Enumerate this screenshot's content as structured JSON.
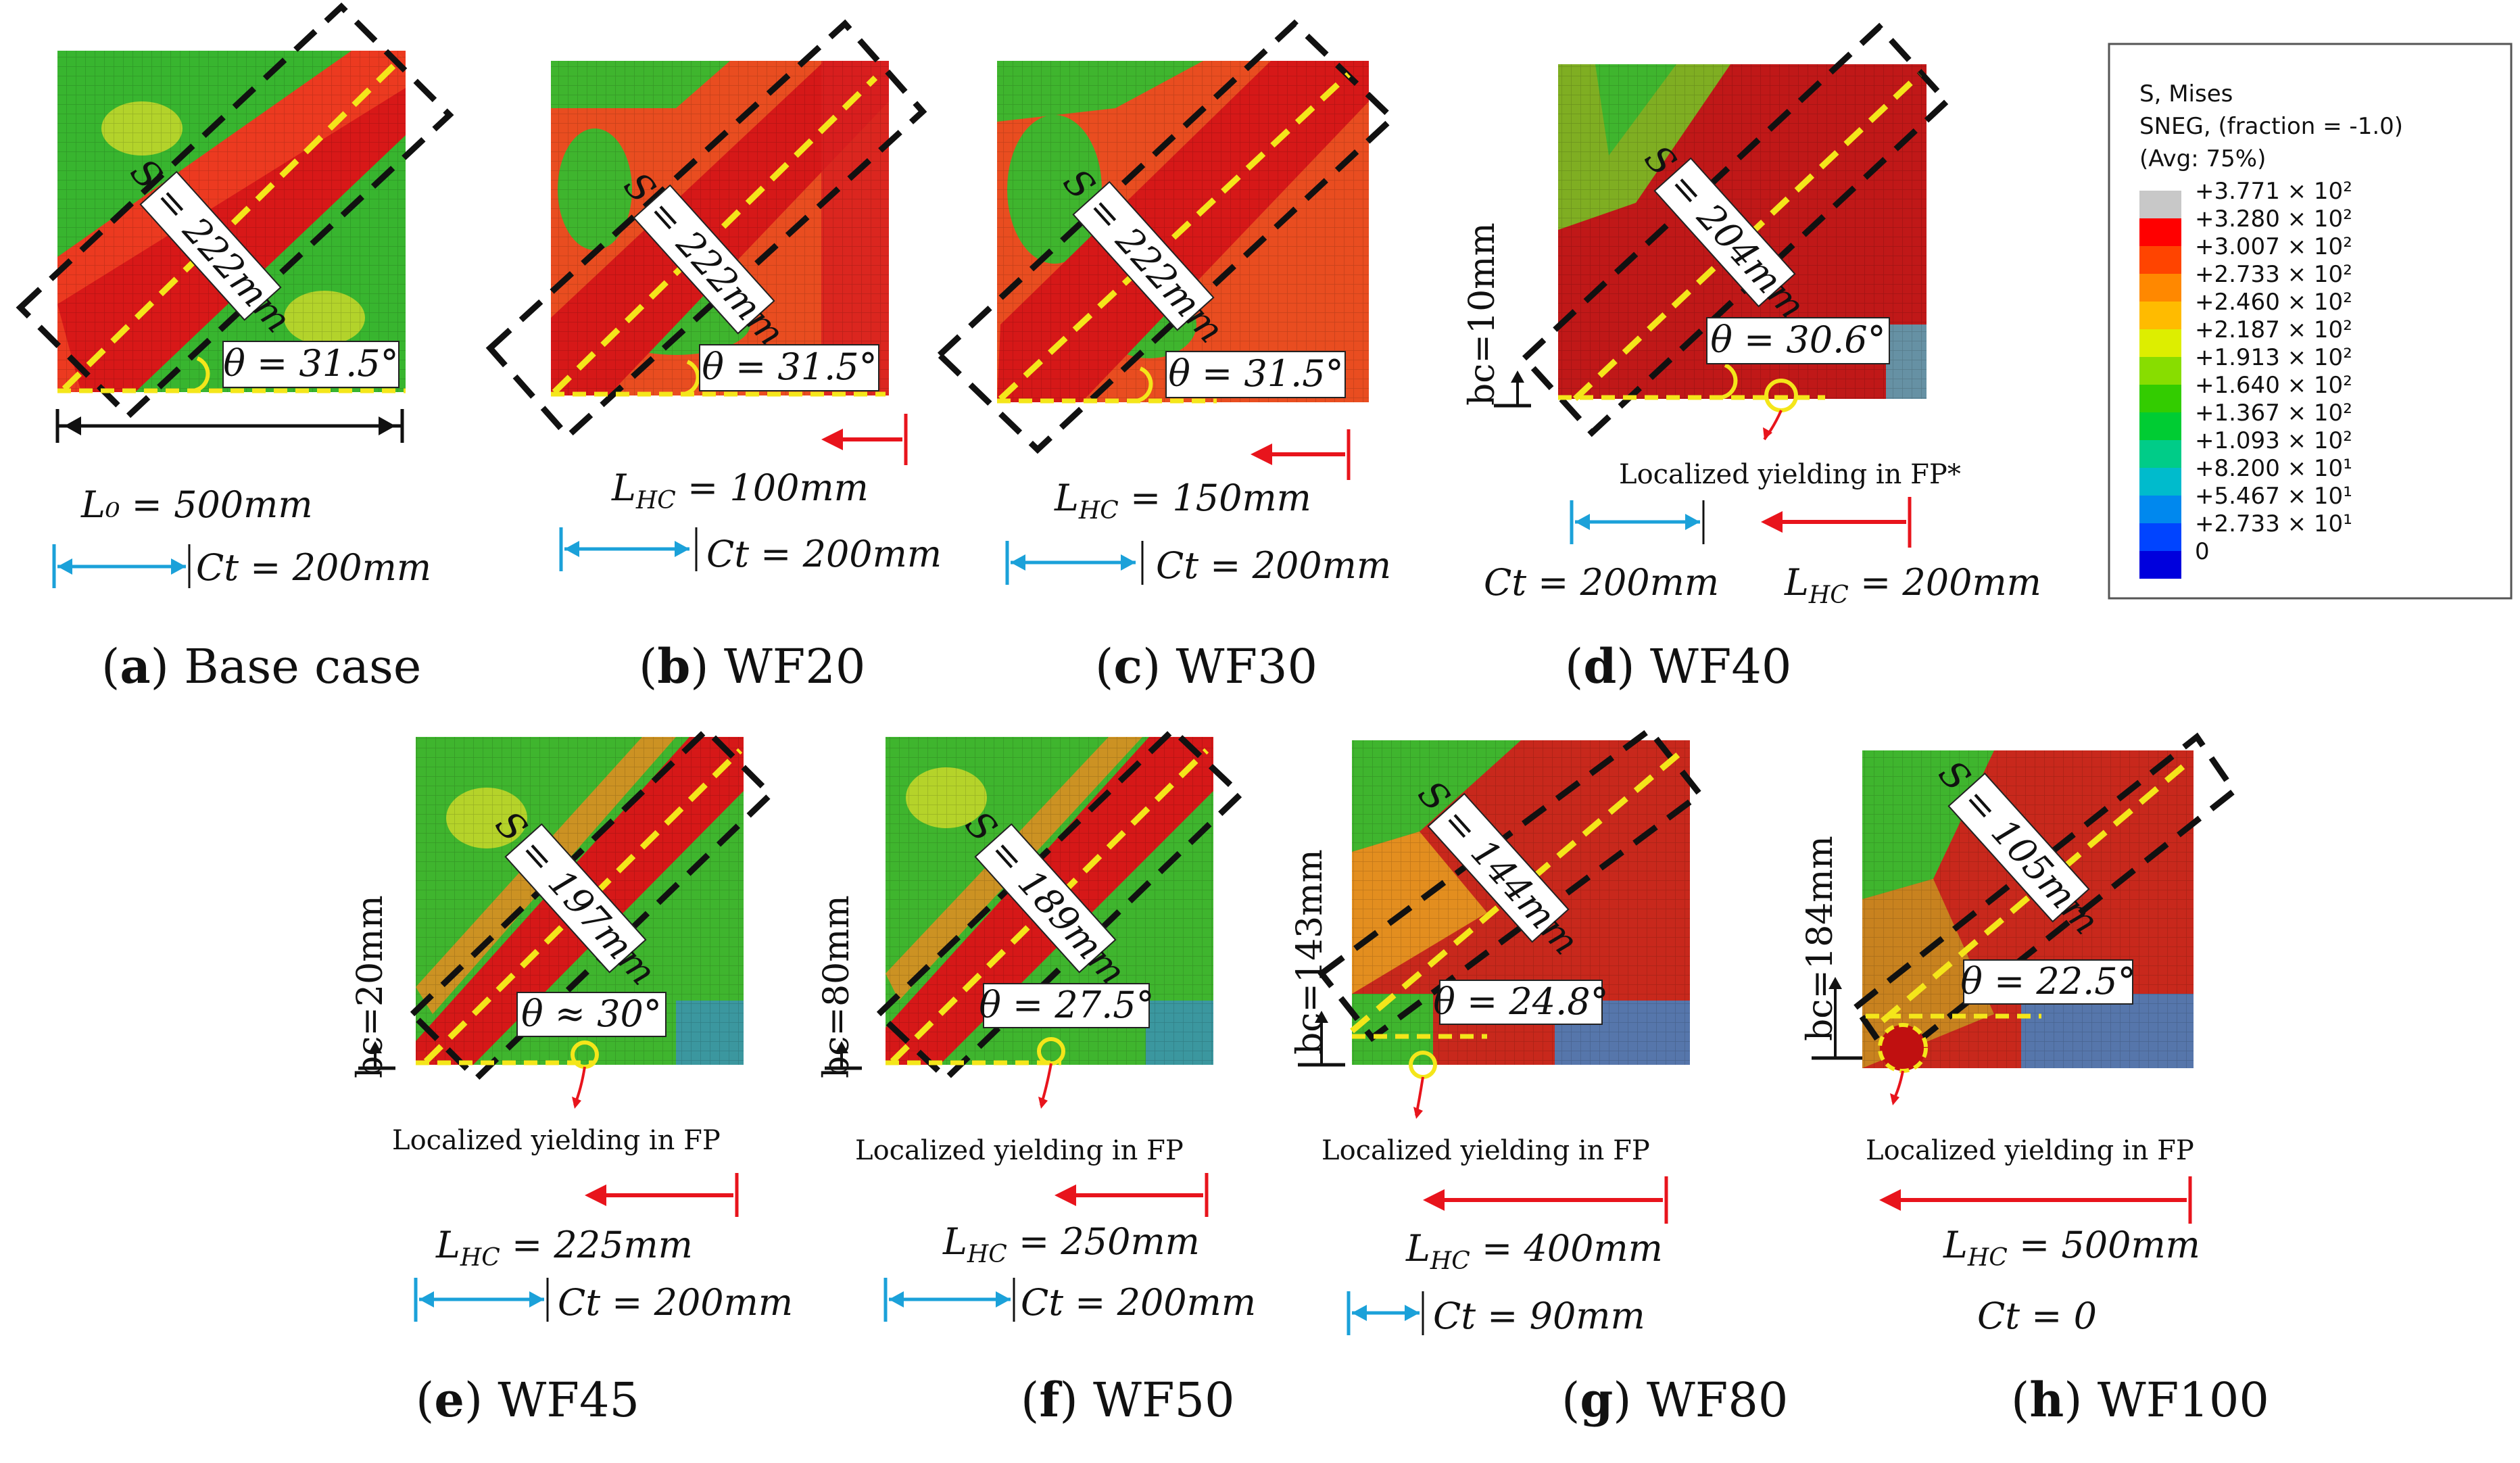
{
  "legend": {
    "title_lines": [
      "S, Mises",
      "SNEG, (fraction = -1.0)",
      "(Avg: 75%)"
    ],
    "entries": [
      {
        "label": "+3.771 × 10²",
        "color": "#c8c8c8"
      },
      {
        "label": "+3.280 × 10²",
        "color": "#ff0000"
      },
      {
        "label": "+3.007 × 10²",
        "color": "#ff4400"
      },
      {
        "label": "+2.733 × 10²",
        "color": "#ff8800"
      },
      {
        "label": "+2.460 × 10²",
        "color": "#ffbb00"
      },
      {
        "label": "+2.187 × 10²",
        "color": "#ddee00"
      },
      {
        "label": "+1.913 × 10²",
        "color": "#88dd00"
      },
      {
        "label": "+1.640 × 10²",
        "color": "#33cc00"
      },
      {
        "label": "+1.367 × 10²",
        "color": "#00cc33"
      },
      {
        "label": "+1.093 × 10²",
        "color": "#00cc88"
      },
      {
        "label": "+8.200 × 10¹",
        "color": "#00bbcc"
      },
      {
        "label": "+5.467 × 10¹",
        "color": "#0088ee"
      },
      {
        "label": "+2.733 × 10¹",
        "color": "#0044ff"
      },
      {
        "label": "0",
        "color": "#0000dd"
      }
    ]
  },
  "panels": [
    {
      "id": "a",
      "letter": "a",
      "title": "Base case",
      "strut": "S = 222mm",
      "theta": "θ = 31.5°",
      "width_label": "L₀ = 500mm",
      "ct": "Ct = 200mm"
    },
    {
      "id": "b",
      "letter": "b",
      "title": "WF20",
      "strut": "S = 222mm",
      "theta": "θ = 31.5°",
      "lhc": "= 100mm",
      "ct": "Ct = 200mm"
    },
    {
      "id": "c",
      "letter": "c",
      "title": "WF30",
      "strut": "S = 222mm",
      "theta": "θ = 31.5°",
      "lhc": "= 150mm",
      "ct": "Ct = 200mm"
    },
    {
      "id": "d",
      "letter": "d",
      "title": "WF40",
      "strut": "S = 204mm",
      "theta": "θ = 30.6°",
      "bc": "bc=10mm",
      "yield": "Localized yielding in FP*",
      "lhc": "= 200mm",
      "ct": "Ct = 200mm"
    },
    {
      "id": "e",
      "letter": "e",
      "title": "WF45",
      "strut": "S = 197mm",
      "theta": "θ ≈ 30°",
      "bc": "bc=20mm",
      "yield": "Localized yielding in FP",
      "lhc": "= 225mm",
      "ct": "Ct = 200mm"
    },
    {
      "id": "f",
      "letter": "f",
      "title": "WF50",
      "strut": "S = 189mm",
      "theta": "θ = 27.5°",
      "bc": "bc=80mm",
      "yield": "Localized yielding in FP",
      "lhc": "= 250mm",
      "ct": "Ct = 200mm"
    },
    {
      "id": "g",
      "letter": "g",
      "title": "WF80",
      "strut": "S = 144mm",
      "theta": "θ = 24.8°",
      "bc": "bc=143mm",
      "yield": "Localized yielding in FP",
      "lhc": "= 400mm",
      "ct": "Ct = 90mm"
    },
    {
      "id": "h",
      "letter": "h",
      "title": "WF100",
      "strut": "S = 105mm",
      "theta": "θ = 22.5°",
      "bc": "bc=184mm",
      "yield": "Localized yielding in FP",
      "lhc": "= 500mm",
      "ct": "Ct = 0"
    }
  ],
  "lhc_symbol": "L",
  "lhc_subscript": "HC",
  "colors": {
    "red": "#e8141c",
    "blue": "#1ba1d9",
    "yellow": "#f4e61a",
    "green": "#34b233",
    "dark_red": "#c01010"
  }
}
